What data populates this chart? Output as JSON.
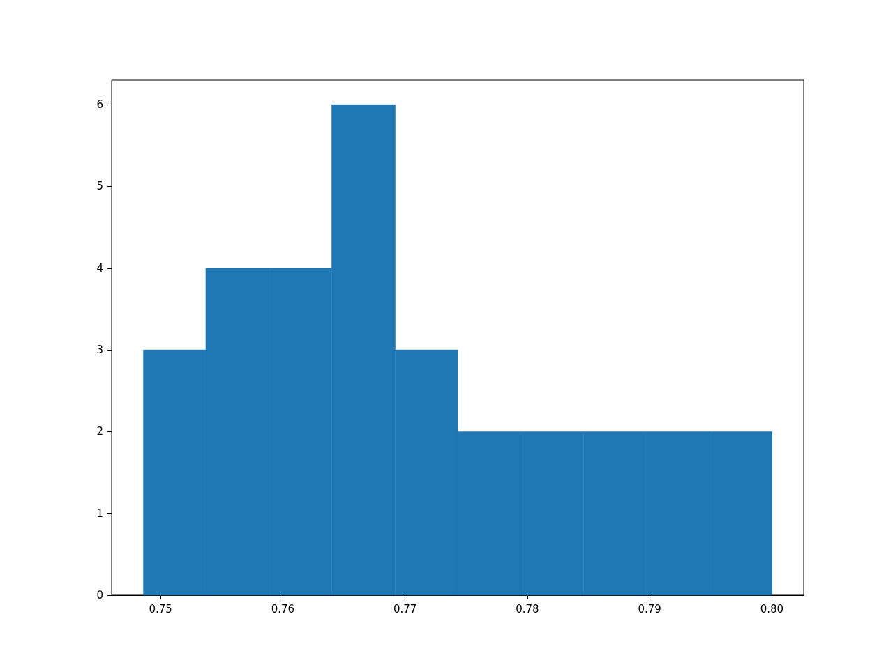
{
  "chart_data": {
    "type": "histogram",
    "bins": [
      0.7486,
      0.7537,
      0.7589,
      0.764,
      0.7692,
      0.7743,
      0.7794,
      0.7846,
      0.7897,
      0.7949,
      0.8
    ],
    "values": [
      3,
      4,
      4,
      6,
      3,
      2,
      2,
      2,
      2,
      2
    ],
    "color": "#1f77b4",
    "xlim": [
      0.746,
      0.8026
    ],
    "xticks": [
      {
        "value": 0.75,
        "label": "0.75"
      },
      {
        "value": 0.76,
        "label": "0.76"
      },
      {
        "value": 0.77,
        "label": "0.77"
      },
      {
        "value": 0.78,
        "label": "0.78"
      },
      {
        "value": 0.79,
        "label": "0.79"
      },
      {
        "value": 0.8,
        "label": "0.80"
      }
    ],
    "ylim": [
      0,
      6.3
    ],
    "yticks": [
      0,
      1,
      2,
      3,
      4,
      5,
      6
    ],
    "grid": false
  }
}
